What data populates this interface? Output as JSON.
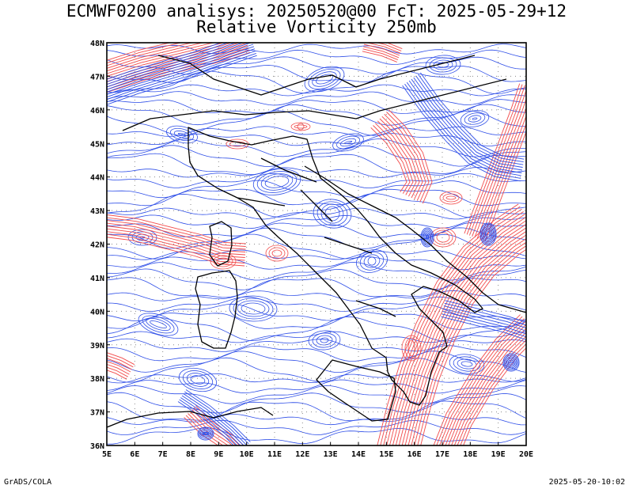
{
  "header": {
    "line1": "ECMWF0200 analisys: 20250520@00 FcT: 2025-05-29+12",
    "line2": "Relative Vorticity 250mb"
  },
  "footer": {
    "left": "GrADS/COLA",
    "right": "2025-05-20-10:02"
  },
  "map": {
    "projection": "lat-lon",
    "lon_range": [
      5,
      20
    ],
    "lat_range": [
      36,
      48
    ],
    "lon_labels": [
      "5E",
      "6E",
      "7E",
      "8E",
      "9E",
      "10E",
      "11E",
      "12E",
      "13E",
      "14E",
      "15E",
      "16E",
      "17E",
      "18E",
      "19E",
      "20E"
    ],
    "lat_labels": [
      "36N",
      "37N",
      "38N",
      "39N",
      "40N",
      "41N",
      "42N",
      "43N",
      "44N",
      "45N",
      "46N",
      "47N",
      "48N"
    ],
    "grid": "dotted",
    "colors": {
      "negative_contours": "#2f4fe8",
      "positive_contours": "#f24a4a",
      "coastline": "#000000",
      "grid": "#888888"
    },
    "features": {
      "positive_bands": [
        {
          "name": "alpine-jet-band"
        },
        {
          "name": "west-tyrrhenian-band"
        },
        {
          "name": "adriatic-lobe"
        },
        {
          "name": "ionian-band"
        },
        {
          "name": "balkan-band"
        },
        {
          "name": "sardinia-lobe"
        },
        {
          "name": "corsica-lobe"
        }
      ],
      "negative_cores": [
        {
          "name": "northwest-core"
        },
        {
          "name": "montenegro-core"
        },
        {
          "name": "south-balkan-core"
        },
        {
          "name": "tunisia-core"
        }
      ]
    }
  }
}
